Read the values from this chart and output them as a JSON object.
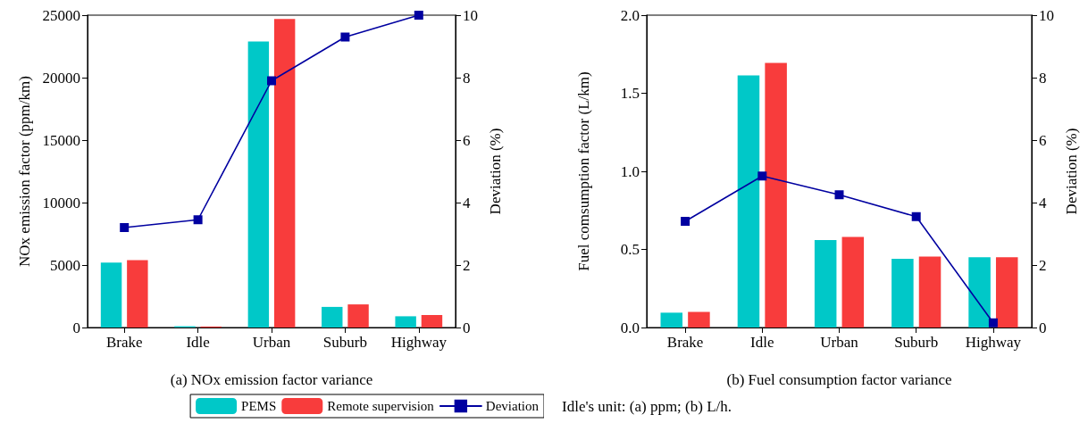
{
  "chart_data": [
    {
      "type": "bar",
      "xlabel": "(a) NOx emission factor variance",
      "ylabel": "NOx emission factor (ppm/km)",
      "y2label": "Deviation (%)",
      "categories": [
        "Brake",
        "Idle",
        "Urban",
        "Suburb",
        "Highway"
      ],
      "series": [
        {
          "name": "PEMS",
          "color": "#00c8c8",
          "values": [
            5200,
            100,
            22900,
            1650,
            900
          ]
        },
        {
          "name": "Remote supervision",
          "color": "#f83c3c",
          "values": [
            5400,
            80,
            24700,
            1850,
            1000
          ]
        },
        {
          "name": "Deviation",
          "type": "line",
          "axis": "y2",
          "color": "#0000a0",
          "values": [
            3.2,
            3.45,
            7.9,
            9.3,
            10.0
          ]
        }
      ],
      "ylim": [
        0,
        25000
      ],
      "yticks": [
        0,
        5000,
        10000,
        15000,
        20000,
        25000
      ],
      "y2lim": [
        0,
        10
      ],
      "y2ticks": [
        0,
        2,
        4,
        6,
        8,
        10
      ],
      "marker": "square",
      "line_style": "solid",
      "grid": false,
      "legend": "bottom"
    },
    {
      "type": "bar",
      "xlabel": "(b) Fuel consumption factor variance",
      "ylabel": "Fuel comsumption factor (L/km)",
      "y2label": "Deviation (%)",
      "categories": [
        "Brake",
        "Idle",
        "Urban",
        "Suburb",
        "Highway"
      ],
      "series": [
        {
          "color": "#00c8c8",
          "values": [
            0.095,
            1.615,
            0.56,
            0.44,
            0.45
          ]
        },
        {
          "color": "#f83c3c",
          "values": [
            0.1,
            1.695,
            0.58,
            0.455,
            0.45
          ]
        },
        {
          "type": "line",
          "axis": "y2",
          "color": "#0000a0",
          "values": [
            3.4,
            4.85,
            4.25,
            3.55,
            0.15
          ]
        }
      ],
      "ylim": [
        0,
        2
      ],
      "yticks": [
        {
          "value": 0,
          "label": "0.0"
        },
        {
          "value": 0.5,
          "label": "0.5"
        },
        {
          "value": 1,
          "label": "1.0"
        },
        {
          "value": 1.5,
          "label": "1.5"
        },
        {
          "value": 2,
          "label": "2.0"
        }
      ],
      "y2lim": [
        0,
        10
      ],
      "y2ticks": [
        0,
        2,
        4,
        6,
        8,
        10
      ],
      "marker": "square",
      "line_style": "solid",
      "grid": false,
      "annotations": [
        "Idle's unit: (a) ppm; (b) L/h."
      ]
    }
  ]
}
